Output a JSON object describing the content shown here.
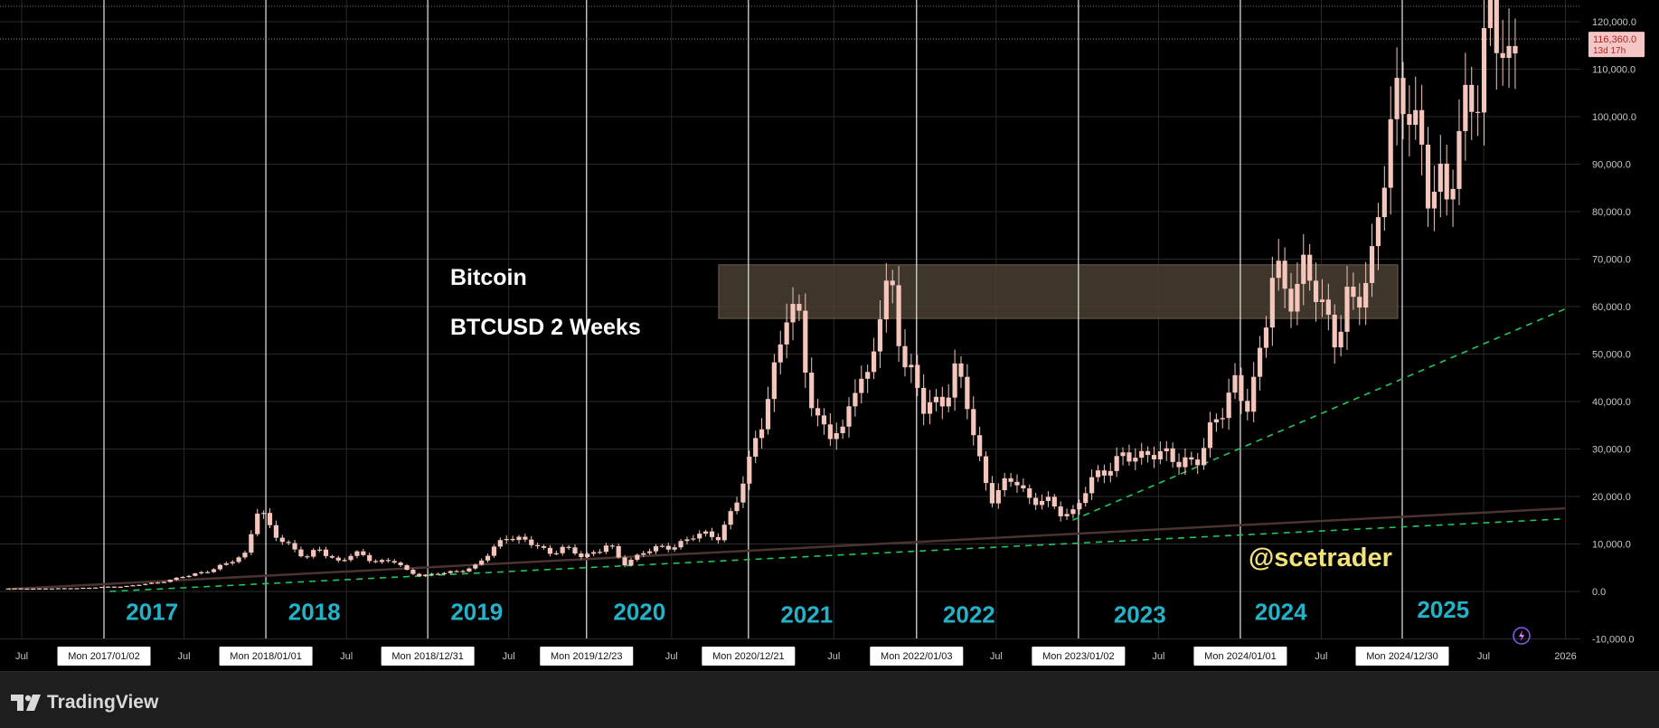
{
  "chart_data": {
    "type": "candlestick",
    "title": "Bitcoin",
    "subtitle": "BTCUSD 2 Weeks",
    "watermark": "@scetrader",
    "ylim": [
      -14000,
      127000
    ],
    "y_ticks": [
      {
        "value": 120000,
        "label": "120,000.0"
      },
      {
        "value": 110000,
        "label": "110,000.0"
      },
      {
        "value": 100000,
        "label": "100,000.0"
      },
      {
        "value": 90000,
        "label": "90,000.0"
      },
      {
        "value": 80000,
        "label": "80,000.0"
      },
      {
        "value": 70000,
        "label": "70,000.0"
      },
      {
        "value": 60000,
        "label": "60,000.0"
      },
      {
        "value": 50000,
        "label": "50,000.0"
      },
      {
        "value": 40000,
        "label": "40,000.0"
      },
      {
        "value": 30000,
        "label": "30,000.0"
      },
      {
        "value": 20000,
        "label": "20,000.0"
      },
      {
        "value": 10000,
        "label": "10,000.0"
      },
      {
        "value": 0,
        "label": "0.0"
      },
      {
        "value": -10000,
        "label": "-10,000.0"
      }
    ],
    "current_price": {
      "value": 116360,
      "label": "116,360.0",
      "countdown": "13d 17h"
    },
    "x_ticks": [
      {
        "date": "2016-07-01",
        "label": "Jul",
        "boxed": false
      },
      {
        "date": "2017-01-02",
        "label": "Mon 2017/01/02",
        "boxed": true
      },
      {
        "date": "2017-07-01",
        "label": "Jul",
        "boxed": false
      },
      {
        "date": "2018-01-01",
        "label": "Mon 2018/01/01",
        "boxed": true
      },
      {
        "date": "2018-07-01",
        "label": "Jul",
        "boxed": false
      },
      {
        "date": "2018-12-31",
        "label": "Mon 2018/12/31",
        "boxed": true
      },
      {
        "date": "2019-07-01",
        "label": "Jul",
        "boxed": false
      },
      {
        "date": "2019-12-23",
        "label": "Mon 2019/12/23",
        "boxed": true
      },
      {
        "date": "2020-07-01",
        "label": "Jul",
        "boxed": false
      },
      {
        "date": "2020-12-21",
        "label": "Mon 2020/12/21",
        "boxed": true
      },
      {
        "date": "2021-07-01",
        "label": "Jul",
        "boxed": false
      },
      {
        "date": "2022-01-03",
        "label": "Mon 2022/01/03",
        "boxed": true
      },
      {
        "date": "2022-07-01",
        "label": "Jul",
        "boxed": false
      },
      {
        "date": "2023-01-02",
        "label": "Mon 2023/01/02",
        "boxed": true
      },
      {
        "date": "2023-07-01",
        "label": "Jul",
        "boxed": false
      },
      {
        "date": "2024-01-01",
        "label": "Mon 2024/01/01",
        "boxed": true
      },
      {
        "date": "2024-07-01",
        "label": "Jul",
        "boxed": false
      },
      {
        "date": "2024-12-30",
        "label": "Mon 2024/12/30",
        "boxed": true
      },
      {
        "date": "2025-07-01",
        "label": "Jul",
        "boxed": false
      },
      {
        "date": "2026-01-01",
        "label": "2026",
        "boxed": false
      }
    ],
    "year_labels": [
      {
        "date": "2017-04-20",
        "label": "2017"
      },
      {
        "date": "2018-04-20",
        "label": "2018"
      },
      {
        "date": "2019-04-20",
        "label": "2019"
      },
      {
        "date": "2020-04-20",
        "label": "2020"
      },
      {
        "date": "2021-05-01",
        "label": "2021"
      },
      {
        "date": "2022-05-01",
        "label": "2022"
      },
      {
        "date": "2023-05-20",
        "label": "2023"
      },
      {
        "date": "2024-04-01",
        "label": "2024"
      },
      {
        "date": "2025-04-01",
        "label": "2025"
      }
    ],
    "year_label_values": [
      -4500,
      -4500,
      -4500,
      -4500,
      -5000,
      -5000,
      -5000,
      -4500,
      -4000
    ],
    "vertical_lines": [
      "2017-01-02",
      "2018-01-01",
      "2018-12-31",
      "2019-12-23",
      "2020-12-21",
      "2022-01-03",
      "2023-01-02",
      "2024-01-01",
      "2024-12-30"
    ],
    "resistance_zone": {
      "x0": "2020-10-15",
      "x1": "2024-12-20",
      "y0": 57500,
      "y1": 68800
    },
    "trendlines": [
      {
        "style": "dashed",
        "color": "#22c55e",
        "points": [
          [
            "2017-01-15",
            0
          ],
          [
            "2025-12-31",
            15300
          ]
        ]
      },
      {
        "style": "dashed",
        "color": "#22c55e",
        "points": [
          [
            "2022-12-20",
            15000
          ],
          [
            "2025-12-31",
            59500
          ]
        ]
      },
      {
        "style": "solid",
        "color": "#4a3430",
        "points": [
          [
            "2016-06-01",
            500
          ],
          [
            "2025-12-31",
            17500
          ]
        ]
      }
    ],
    "candles_anchor": [
      [
        "2016-06-01",
        600
      ],
      [
        "2016-09-01",
        610
      ],
      [
        "2016-12-01",
        760
      ],
      [
        "2017-01-02",
        950
      ],
      [
        "2017-03-01",
        1150
      ],
      [
        "2017-05-01",
        1900
      ],
      [
        "2017-06-15",
        2700
      ],
      [
        "2017-08-15",
        4200
      ],
      [
        "2017-10-01",
        5500
      ],
      [
        "2017-11-15",
        8000
      ],
      [
        "2017-12-15",
        18000
      ],
      [
        "2018-01-15",
        12000
      ],
      [
        "2018-02-15",
        10500
      ],
      [
        "2018-04-01",
        7000
      ],
      [
        "2018-05-01",
        8800
      ],
      [
        "2018-06-15",
        6300
      ],
      [
        "2018-07-20",
        8000
      ],
      [
        "2018-09-01",
        6500
      ],
      [
        "2018-10-15",
        6400
      ],
      [
        "2018-11-15",
        4200
      ],
      [
        "2018-12-15",
        3400
      ],
      [
        "2019-02-15",
        3900
      ],
      [
        "2019-04-15",
        5200
      ],
      [
        "2019-05-20",
        8000
      ],
      [
        "2019-06-25",
        12000
      ],
      [
        "2019-08-15",
        10200
      ],
      [
        "2019-10-01",
        8300
      ],
      [
        "2019-11-01",
        9200
      ],
      [
        "2019-12-15",
        7200
      ],
      [
        "2020-02-10",
        10000
      ],
      [
        "2020-03-15",
        5500
      ],
      [
        "2020-05-01",
        8700
      ],
      [
        "2020-07-01",
        9200
      ],
      [
        "2020-08-15",
        11800
      ],
      [
        "2020-10-15",
        11500
      ],
      [
        "2020-11-20",
        18500
      ],
      [
        "2020-12-20",
        25000
      ],
      [
        "2021-01-15",
        35000
      ],
      [
        "2021-02-20",
        48000
      ],
      [
        "2021-03-15",
        58000
      ],
      [
        "2021-04-15",
        56000
      ],
      [
        "2021-05-20",
        37000
      ],
      [
        "2021-06-20",
        33000
      ],
      [
        "2021-07-20",
        32000
      ],
      [
        "2021-08-15",
        46000
      ],
      [
        "2021-09-15",
        44000
      ],
      [
        "2021-10-20",
        61000
      ],
      [
        "2021-11-10",
        64000
      ],
      [
        "2021-12-10",
        48000
      ],
      [
        "2022-01-20",
        38000
      ],
      [
        "2022-02-20",
        40000
      ],
      [
        "2022-03-30",
        46000
      ],
      [
        "2022-05-01",
        38000
      ],
      [
        "2022-05-20",
        29000
      ],
      [
        "2022-06-20",
        20000
      ],
      [
        "2022-07-20",
        22000
      ],
      [
        "2022-08-15",
        23500
      ],
      [
        "2022-09-15",
        19500
      ],
      [
        "2022-10-15",
        19500
      ],
      [
        "2022-11-15",
        16500
      ],
      [
        "2022-12-20",
        16800
      ],
      [
        "2023-01-20",
        22000
      ],
      [
        "2023-02-20",
        24000
      ],
      [
        "2023-03-20",
        27500
      ],
      [
        "2023-04-15",
        29500
      ],
      [
        "2023-05-20",
        26800
      ],
      [
        "2023-06-25",
        30500
      ],
      [
        "2023-07-20",
        29300
      ],
      [
        "2023-08-20",
        26000
      ],
      [
        "2023-09-20",
        27000
      ],
      [
        "2023-10-20",
        34000
      ],
      [
        "2023-11-20",
        37000
      ],
      [
        "2023-12-20",
        43000
      ],
      [
        "2024-01-20",
        41000
      ],
      [
        "2024-02-20",
        51000
      ],
      [
        "2024-03-15",
        67000
      ],
      [
        "2024-04-15",
        64000
      ],
      [
        "2024-05-20",
        67000
      ],
      [
        "2024-06-20",
        62000
      ],
      [
        "2024-07-10",
        58000
      ],
      [
        "2024-08-05",
        55000
      ],
      [
        "2024-08-25",
        61000
      ],
      [
        "2024-09-15",
        58500
      ],
      [
        "2024-10-20",
        68000
      ],
      [
        "2024-11-15",
        90000
      ],
      [
        "2024-12-15",
        100000
      ],
      [
        "2025-01-20",
        102000
      ],
      [
        "2025-02-10",
        96000
      ],
      [
        "2025-03-01",
        85000
      ],
      [
        "2025-03-20",
        84000
      ],
      [
        "2025-04-10",
        80000
      ],
      [
        "2025-05-01",
        95000
      ],
      [
        "2025-05-25",
        107000
      ],
      [
        "2025-06-20",
        104000
      ],
      [
        "2025-07-15",
        118000
      ],
      [
        "2025-08-10",
        119000
      ],
      [
        "2025-09-01",
        111000
      ],
      [
        "2025-09-15",
        116360
      ]
    ]
  },
  "brand": {
    "name": "TradingView"
  },
  "colors": {
    "candle": "#f5c6bc",
    "grid": "#2a2a2a",
    "axis_text": "#c7c7c7",
    "year_label": "#22b3c9",
    "watermark": "#f2e27a",
    "zone": "#4a3f33",
    "price_tag_bg": "#f5c6c6",
    "price_tag_text": "#b82323"
  }
}
